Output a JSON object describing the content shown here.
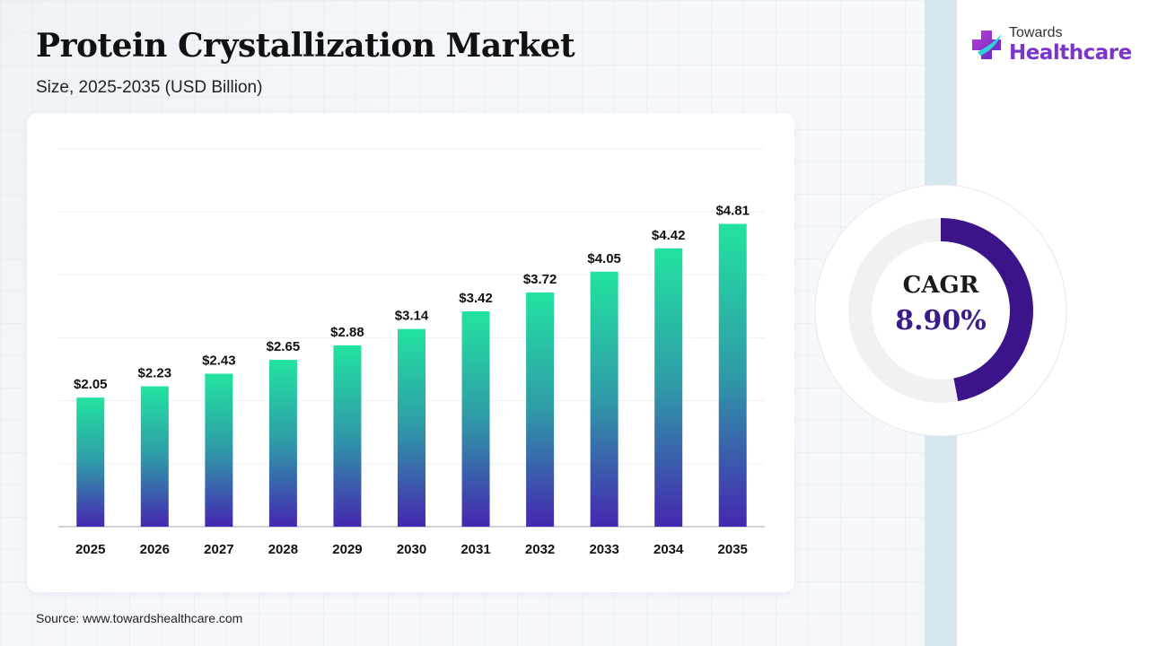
{
  "header": {
    "title": "Protein Crystallization Market",
    "subtitle": "Size, 2025-2035 (USD Billion)"
  },
  "logo": {
    "line1": "Towards",
    "line2": "Healthcare",
    "icon": "medical-cross-icon"
  },
  "cagr": {
    "label": "CAGR",
    "value": "8.90%",
    "ring_fill_fraction": 0.47,
    "ring_color": "#3b1489"
  },
  "source": "Source: www.towardshealthcare.com",
  "colors": {
    "bar_top": "#22e3a0",
    "bar_mid": "#2f9aa8",
    "bar_bottom": "#4527b0"
  },
  "chart_data": {
    "type": "bar",
    "categories": [
      "2025",
      "2026",
      "2027",
      "2028",
      "2029",
      "2030",
      "2031",
      "2032",
      "2033",
      "2034",
      "2035"
    ],
    "values": [
      2.05,
      2.23,
      2.43,
      2.65,
      2.88,
      3.14,
      3.42,
      3.72,
      4.05,
      4.42,
      4.81
    ],
    "data_labels": [
      "$2.05",
      "$2.23",
      "$2.43",
      "$2.65",
      "$2.88",
      "$3.14",
      "$3.42",
      "$3.72",
      "$4.05",
      "$4.42",
      "$4.81"
    ],
    "title": "",
    "xlabel": "",
    "ylabel": "",
    "ylim": [
      0,
      6
    ],
    "grid": true,
    "legend": "none"
  }
}
